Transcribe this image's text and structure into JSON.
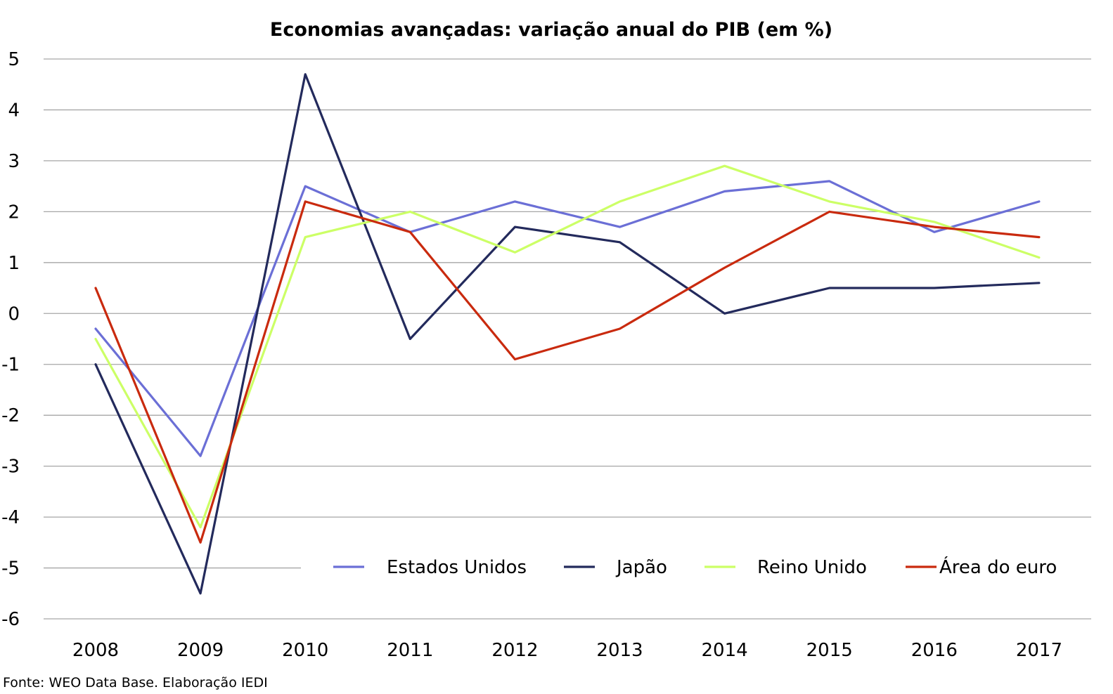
{
  "source_note": "Fonte: WEO Data Base. Elaboração IEDI",
  "chart_data": {
    "type": "line",
    "title": "Economias avançadas: variação anual do PIB (em %)",
    "xlabel": "",
    "ylabel": "",
    "categories": [
      "2008",
      "2009",
      "2010",
      "2011",
      "2012",
      "2013",
      "2014",
      "2015",
      "2016",
      "2017"
    ],
    "yticks": [
      5,
      4,
      3,
      2,
      1,
      0,
      -1,
      -2,
      -3,
      -4,
      -5,
      -6
    ],
    "ylim": [
      -6,
      5
    ],
    "grid": true,
    "legend_position": "bottom-right",
    "series": [
      {
        "name": "Estados Unidos",
        "color": "#6b6fd6",
        "values": [
          -0.3,
          -2.8,
          2.5,
          1.6,
          2.2,
          1.7,
          2.4,
          2.6,
          1.6,
          2.2
        ]
      },
      {
        "name": "Japão",
        "color": "#232a5c",
        "values": [
          -1.0,
          -5.5,
          4.7,
          -0.5,
          1.7,
          1.4,
          0.0,
          0.5,
          0.5,
          0.6
        ]
      },
      {
        "name": "Reino Unido",
        "color": "#ccff66",
        "values": [
          -0.5,
          -4.2,
          1.5,
          2.0,
          1.2,
          2.2,
          2.9,
          2.2,
          1.8,
          1.1
        ]
      },
      {
        "name": "Área do euro",
        "color": "#c92a0e",
        "values": [
          0.5,
          -4.5,
          2.2,
          1.6,
          -0.9,
          -0.3,
          0.9,
          2.0,
          1.7,
          1.5
        ]
      }
    ]
  }
}
